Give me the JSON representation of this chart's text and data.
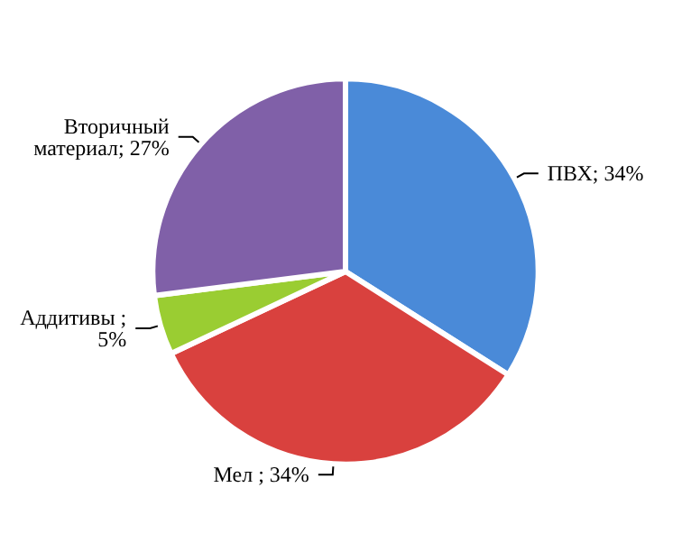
{
  "chart_data": {
    "type": "pie",
    "categories": [
      "ПВХ",
      "Мел",
      "Аддитивы",
      "Вторичный материал"
    ],
    "values": [
      34,
      34,
      5,
      27
    ],
    "colors": [
      "#4a8ad8",
      "#d9413e",
      "#9acd32",
      "#8060a8"
    ],
    "value_labels": [
      "; 34%",
      " ; 34%",
      " ; 5%",
      "; 27%"
    ],
    "legend": false
  }
}
